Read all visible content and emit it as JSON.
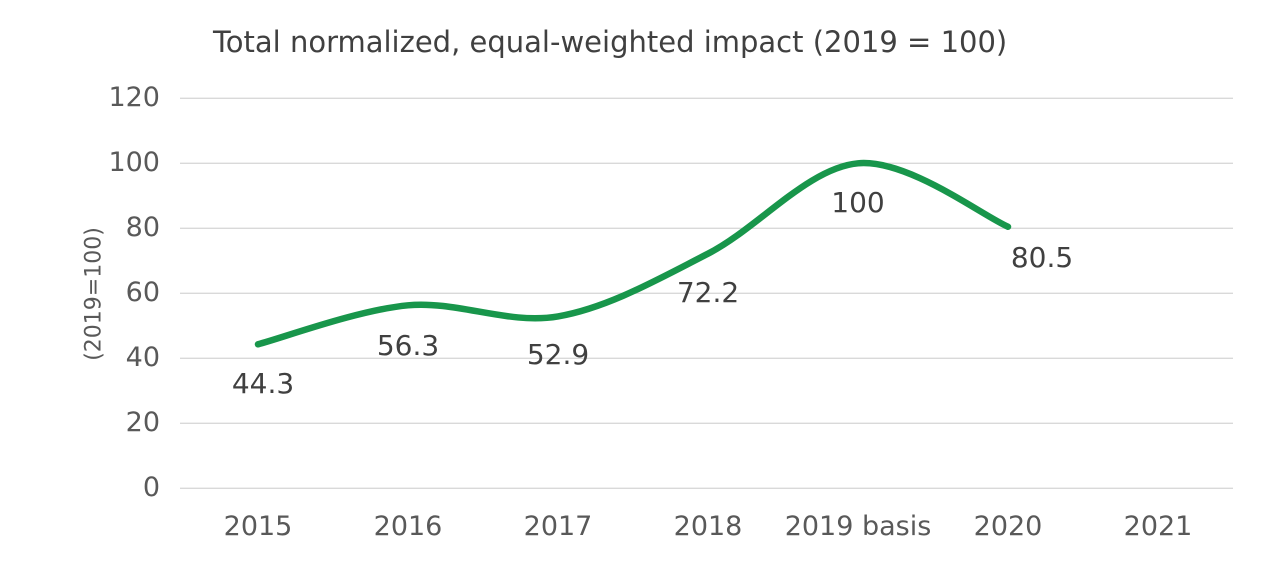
{
  "chart_data": {
    "type": "line",
    "title": "Total normalized, equal-weighted impact (2019 = 100)",
    "xlabel": "",
    "ylabel": "(2019=100)",
    "categories": [
      "2015",
      "2016",
      "2017",
      "2018",
      "2019 basis",
      "2020",
      "2021"
    ],
    "series": [
      {
        "name": "Total normalized, equal-weighted impact",
        "values": [
          44.3,
          56.3,
          52.9,
          72.2,
          100,
          80.5,
          null
        ]
      }
    ],
    "data_labels": [
      "44.3",
      "56.3",
      "52.9",
      "72.2",
      "100",
      "80.5"
    ],
    "y_ticks": [
      0,
      20,
      40,
      60,
      80,
      100,
      120
    ],
    "ylim": [
      0,
      120
    ],
    "grid": true,
    "legend_position": "none",
    "smooth": true,
    "colors": {
      "line": "#18964B",
      "gridline": "#d9d9d9",
      "title_text": "#404040",
      "axis_text": "#595959",
      "data_label_text": "#404040",
      "background": "#ffffff"
    }
  }
}
